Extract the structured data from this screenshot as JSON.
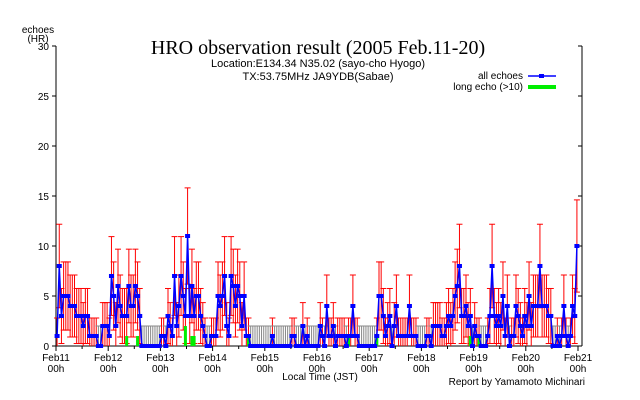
{
  "chart_data": {
    "type": "line",
    "title": "HRO observation result (2005 Feb.11-20)",
    "subtitle_location": "Location:E134.34 N35.02 (sayo-cho Hyogo)",
    "subtitle_tx": "TX:53.75MHz JA9YDB(Sabae)",
    "ylabel_line1": "echoes",
    "ylabel_line2": "(HR)",
    "xlabel": "Local Time (JST)",
    "credit": "Report by Yamamoto Michinari",
    "ylim": [
      0,
      30
    ],
    "yticks": [
      "0",
      "5",
      "10",
      "15",
      "20",
      "25",
      "30"
    ],
    "xticks": [
      {
        "day": "Feb11",
        "hour": "00h"
      },
      {
        "day": "Feb12",
        "hour": "00h"
      },
      {
        "day": "Feb13",
        "hour": "00h"
      },
      {
        "day": "Feb14",
        "hour": "00h"
      },
      {
        "day": "Feb15",
        "hour": "00h"
      },
      {
        "day": "Feb16",
        "hour": "00h"
      },
      {
        "day": "Feb17",
        "hour": "00h"
      },
      {
        "day": "Feb18",
        "hour": "00h"
      },
      {
        "day": "Feb19",
        "hour": "00h"
      },
      {
        "day": "Feb20",
        "hour": "00h"
      },
      {
        "day": "Feb21",
        "hour": "00h"
      }
    ],
    "x_unit": "hours since Feb11 00h",
    "legend": {
      "placement": "top-right",
      "all": "all echoes",
      "long": "long echo (>10)"
    },
    "colors": {
      "all": "#0000ff",
      "long": "#00ee00",
      "err": "#ff0000",
      "err_zero": "#888888"
    },
    "series": [
      {
        "name": "all echoes",
        "values": [
          1,
          8,
          3,
          5,
          5,
          5,
          4,
          4,
          4,
          3,
          3,
          3,
          2,
          3,
          3,
          1,
          1,
          1,
          1,
          0,
          0,
          2,
          2,
          2,
          1,
          7,
          5,
          2,
          6,
          4,
          3,
          3,
          3,
          6,
          4,
          4,
          6,
          5,
          3,
          0,
          0,
          0,
          0,
          0,
          0,
          0,
          0,
          0,
          1,
          1,
          0,
          3,
          2,
          1,
          7,
          2,
          4,
          7,
          5,
          3,
          11,
          3,
          6,
          3,
          5,
          5,
          3,
          2,
          1,
          0,
          0,
          1,
          1,
          1,
          5,
          4,
          5,
          7,
          2,
          1,
          7,
          6,
          4,
          6,
          5,
          2,
          5,
          1,
          1,
          0,
          0,
          0,
          0,
          0,
          0,
          0,
          0,
          0,
          0,
          1,
          0,
          0,
          0,
          0,
          0,
          0,
          0,
          0,
          1,
          1,
          0,
          0,
          0,
          2,
          0,
          1,
          0,
          0,
          0,
          0,
          0,
          2,
          1,
          0,
          4,
          1,
          1,
          2,
          0,
          1,
          1,
          1,
          1,
          0,
          1,
          1,
          4,
          1,
          1,
          0,
          0,
          0,
          0,
          0,
          0,
          0,
          0,
          1,
          5,
          5,
          3,
          1,
          2,
          3,
          0,
          2,
          4,
          1,
          1,
          1,
          1,
          1,
          4,
          1,
          1,
          1,
          0,
          0,
          0,
          0,
          1,
          1,
          0,
          2,
          2,
          2,
          2,
          1,
          1,
          2,
          3,
          2,
          3,
          5,
          6,
          8,
          3,
          3,
          4,
          2,
          3,
          0,
          2,
          1,
          1,
          0,
          0,
          0,
          1,
          3,
          8,
          3,
          2,
          3,
          2,
          5,
          1,
          4,
          0,
          1,
          1,
          4,
          3,
          2,
          1,
          3,
          2,
          5,
          2,
          4,
          4,
          4,
          8,
          4,
          4,
          4,
          3,
          3,
          0,
          0,
          1,
          0,
          1,
          4,
          1,
          0,
          1,
          4,
          3,
          10
        ]
      },
      {
        "name": "long echo (>10)",
        "points": [
          {
            "hour": 32,
            "value": 1
          },
          {
            "hour": 37,
            "value": 1
          },
          {
            "hour": 59,
            "value": 2
          },
          {
            "hour": 62,
            "value": 1
          },
          {
            "hour": 63,
            "value": 1
          },
          {
            "hour": 88,
            "value": 1
          },
          {
            "hour": 134,
            "value": 1
          },
          {
            "hour": 147,
            "value": 1
          },
          {
            "hour": 190,
            "value": 1
          },
          {
            "hour": 194,
            "value": 1
          }
        ]
      }
    ]
  }
}
